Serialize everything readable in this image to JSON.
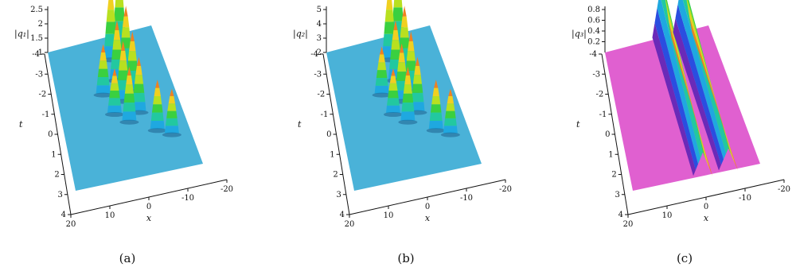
{
  "panels": [
    {
      "id": "a",
      "caption": "(a)",
      "zlabel": "|q₁|",
      "xlabel": "x",
      "tlabel": "t",
      "surface_color": "#4ab2d8",
      "colormap": "rainbow",
      "chart_data": {
        "type": "surface3d",
        "zlabel": "|q1|",
        "xlabel": "x",
        "ylabel": "t",
        "x_ticks": [
          "20",
          "10",
          "0",
          "-10",
          "-20"
        ],
        "t_ticks": [
          "-4",
          "-3",
          "-2",
          "-1",
          "0",
          "1",
          "2",
          "3",
          "4"
        ],
        "z_ticks": [
          "1",
          "1.5",
          "2",
          "2.5"
        ],
        "xlim": [
          -20,
          20
        ],
        "tlim": [
          -4,
          4
        ],
        "zlim": [
          1,
          2.5
        ],
        "peaks": [
          {
            "x": -6,
            "t": -3.2,
            "z": 2.5
          },
          {
            "x": -2,
            "t": -2.8,
            "z": 2.3
          },
          {
            "x": -6,
            "t": -2.0,
            "z": 2.1
          },
          {
            "x": -2,
            "t": -1.6,
            "z": 2.0
          },
          {
            "x": -6,
            "t": -0.8,
            "z": 2.0
          },
          {
            "x": -2,
            "t": -0.4,
            "z": 2.0
          },
          {
            "x": -6,
            "t": 0.4,
            "z": 1.9
          },
          {
            "x": -2,
            "t": 0.8,
            "z": 1.9
          },
          {
            "x": -10,
            "t": 1.6,
            "z": 1.8
          },
          {
            "x": -14,
            "t": 2.0,
            "z": 1.7
          },
          {
            "x": 4,
            "t": -1.0,
            "z": 1.8
          },
          {
            "x": 2,
            "t": 0.2,
            "z": 1.7
          }
        ]
      }
    },
    {
      "id": "b",
      "caption": "(b)",
      "zlabel": "|q₂|",
      "xlabel": "x",
      "tlabel": "t",
      "surface_color": "#4ab2d8",
      "colormap": "rainbow",
      "chart_data": {
        "type": "surface3d",
        "zlabel": "|q2|",
        "xlabel": "x",
        "ylabel": "t",
        "x_ticks": [
          "20",
          "10",
          "0",
          "-10",
          "-20"
        ],
        "t_ticks": [
          "-4",
          "-3",
          "-2",
          "-1",
          "0",
          "1",
          "2",
          "3",
          "4"
        ],
        "z_ticks": [
          "2",
          "3",
          "4",
          "5"
        ],
        "xlim": [
          -20,
          20
        ],
        "tlim": [
          -4,
          4
        ],
        "zlim": [
          2,
          5
        ],
        "peaks": [
          {
            "x": -6,
            "t": -3.2,
            "z": 5.0
          },
          {
            "x": -2,
            "t": -2.8,
            "z": 4.6
          },
          {
            "x": -6,
            "t": -2.0,
            "z": 4.2
          },
          {
            "x": -2,
            "t": -1.6,
            "z": 4.0
          },
          {
            "x": -6,
            "t": -0.8,
            "z": 4.0
          },
          {
            "x": -2,
            "t": -0.4,
            "z": 3.9
          },
          {
            "x": -6,
            "t": 0.4,
            "z": 3.8
          },
          {
            "x": -2,
            "t": 0.8,
            "z": 3.8
          },
          {
            "x": -10,
            "t": 1.6,
            "z": 3.6
          },
          {
            "x": -14,
            "t": 2.0,
            "z": 3.4
          },
          {
            "x": 4,
            "t": -1.0,
            "z": 3.5
          },
          {
            "x": 2,
            "t": 0.2,
            "z": 3.4
          }
        ]
      }
    },
    {
      "id": "c",
      "caption": "(c)",
      "zlabel": "|q₃|",
      "xlabel": "x",
      "tlabel": "t",
      "surface_color": "#e060d0",
      "colormap": "rainbow",
      "chart_data": {
        "type": "surface3d",
        "zlabel": "|q3|",
        "xlabel": "x",
        "ylabel": "t",
        "x_ticks": [
          "20",
          "10",
          "0",
          "-10",
          "-20"
        ],
        "t_ticks": [
          "-4",
          "-3",
          "-2",
          "-1",
          "0",
          "1",
          "2",
          "3",
          "4"
        ],
        "z_ticks": [
          "0.2",
          "0.4",
          "0.6",
          "0.8"
        ],
        "xlim": [
          -20,
          20
        ],
        "tlim": [
          -4,
          4
        ],
        "zlim": [
          0,
          0.8
        ],
        "ridges": [
          {
            "x": -2,
            "z": 0.85
          },
          {
            "x": -10,
            "z": 0.8
          }
        ]
      }
    }
  ]
}
